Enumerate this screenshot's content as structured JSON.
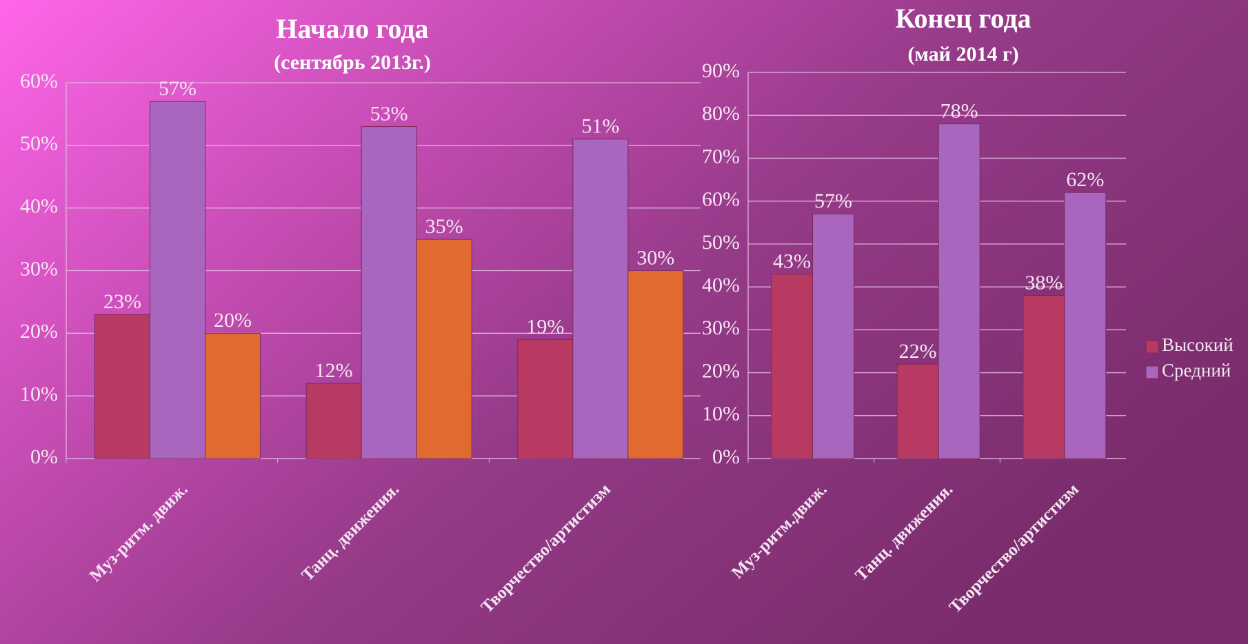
{
  "chart_data": [
    {
      "type": "bar",
      "title": "Начало года",
      "subtitle": "(сентябрь 2013г.)",
      "categories": [
        "Муз-ритм. движ.",
        "Танц. движения.",
        "Творчество/артистизм"
      ],
      "series": [
        {
          "color": "#b83a62",
          "values": [
            23,
            12,
            19
          ],
          "value_labels": [
            "23%",
            "12%",
            "19%"
          ]
        },
        {
          "color": "#a966bf",
          "values": [
            57,
            53,
            51
          ],
          "value_labels": [
            "57%",
            "53%",
            "51%"
          ]
        },
        {
          "color": "#e06a30",
          "values": [
            20,
            35,
            30
          ],
          "value_labels": [
            "20%",
            "35%",
            "30%"
          ]
        }
      ],
      "ylim": [
        0,
        60
      ],
      "yticks": [
        {
          "value": 0,
          "label": "0%"
        },
        {
          "value": 10,
          "label": "10%"
        },
        {
          "value": 20,
          "label": "20%"
        },
        {
          "value": 30,
          "label": "30%"
        },
        {
          "value": 40,
          "label": "40%"
        },
        {
          "value": 50,
          "label": "50%"
        },
        {
          "value": 60,
          "label": "60%"
        }
      ],
      "grid": true
    },
    {
      "type": "bar",
      "title": "Конец года",
      "subtitle": "(май 2014 г)",
      "categories": [
        "Муз-ритм.движ.",
        "Танц. движения.",
        "Творчество/артистизм"
      ],
      "series": [
        {
          "name": "Высокий",
          "color": "#b83a62",
          "values": [
            43,
            22,
            38
          ],
          "value_labels": [
            "43%",
            "22%",
            "38%"
          ]
        },
        {
          "name": "Средний",
          "color": "#a966bf",
          "values": [
            57,
            78,
            62
          ],
          "value_labels": [
            "57%",
            "78%",
            "62%"
          ]
        }
      ],
      "ylim": [
        0,
        90
      ],
      "yticks": [
        {
          "value": 0,
          "label": "0%"
        },
        {
          "value": 10,
          "label": "10%"
        },
        {
          "value": 20,
          "label": "20%"
        },
        {
          "value": 30,
          "label": "30%"
        },
        {
          "value": 40,
          "label": "40%"
        },
        {
          "value": 50,
          "label": "50%"
        },
        {
          "value": 60,
          "label": "60%"
        },
        {
          "value": 70,
          "label": "70%"
        },
        {
          "value": 80,
          "label": "80%"
        },
        {
          "value": 90,
          "label": "90%"
        }
      ],
      "grid": true,
      "legend": "right"
    }
  ]
}
